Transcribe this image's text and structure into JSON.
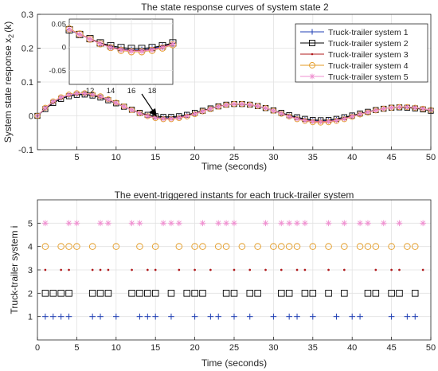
{
  "chart_data": [
    {
      "type": "line",
      "title": "The state response curves of system state 2",
      "xlabel": "Time (seconds)",
      "ylabel_main": "System state response x",
      "ylabel_sub": "2",
      "ylabel_tail": "(k)",
      "xlim": [
        0,
        50
      ],
      "ylim": [
        -0.1,
        0.3
      ],
      "xticks": [
        "5",
        "10",
        "15",
        "20",
        "25",
        "30",
        "35",
        "40",
        "45",
        "50"
      ],
      "yticks": [
        "-0.1",
        "0",
        "0.1",
        "0.2",
        "0.3"
      ],
      "grid": true,
      "legend_position": "top-right",
      "series": [
        {
          "name": "Truck-trailer system 1",
          "color": "#1f3fb4",
          "marker": "plus"
        },
        {
          "name": "Truck-trailer system 2",
          "color": "#000000",
          "marker": "square"
        },
        {
          "name": "Truck-trailer system 3",
          "color": "#b0181b",
          "marker": "dot"
        },
        {
          "name": "Truck-trailer system 4",
          "color": "#e39a22",
          "marker": "circle"
        },
        {
          "name": "Truck-trailer system 5",
          "color": "#ef8fd0",
          "marker": "star"
        }
      ],
      "x": [
        0,
        1,
        2,
        3,
        4,
        5,
        6,
        7,
        8,
        9,
        10,
        11,
        12,
        13,
        14,
        15,
        16,
        17,
        18,
        19,
        20,
        21,
        22,
        23,
        24,
        25,
        26,
        27,
        28,
        29,
        30,
        31,
        32,
        33,
        34,
        35,
        36,
        37,
        38,
        39,
        40,
        41,
        42,
        43,
        44,
        45,
        46,
        47,
        48,
        49,
        50
      ],
      "series_values": {
        "s1": [
          0,
          0.022,
          0.04,
          0.052,
          0.06,
          0.064,
          0.064,
          0.061,
          0.055,
          0.047,
          0.037,
          0.027,
          0.017,
          0.008,
          0.001,
          -0.004,
          -0.006,
          -0.006,
          -0.003,
          0.002,
          0.008,
          0.015,
          0.022,
          0.028,
          0.032,
          0.034,
          0.034,
          0.032,
          0.028,
          0.022,
          0.015,
          0.007,
          0,
          -0.006,
          -0.011,
          -0.014,
          -0.015,
          -0.014,
          -0.011,
          -0.006,
          0,
          0.006,
          0.012,
          0.017,
          0.021,
          0.024,
          0.025,
          0.025,
          0.023,
          0.02,
          0.016
        ],
        "s2": [
          0,
          0.02,
          0.038,
          0.05,
          0.058,
          0.062,
          0.063,
          0.06,
          0.054,
          0.046,
          0.037,
          0.027,
          0.018,
          0.009,
          0.003,
          -0.001,
          -0.003,
          -0.003,
          -0.001,
          0.003,
          0.009,
          0.015,
          0.022,
          0.028,
          0.033,
          0.035,
          0.035,
          0.033,
          0.029,
          0.023,
          0.016,
          0.009,
          0.002,
          -0.004,
          -0.009,
          -0.012,
          -0.013,
          -0.012,
          -0.009,
          -0.004,
          0.001,
          0.007,
          0.012,
          0.017,
          0.021,
          0.024,
          0.025,
          0.024,
          0.022,
          0.019,
          0.015
        ],
        "s3": [
          0,
          0.023,
          0.042,
          0.054,
          0.062,
          0.066,
          0.066,
          0.063,
          0.057,
          0.049,
          0.039,
          0.028,
          0.018,
          0.008,
          0,
          -0.005,
          -0.008,
          -0.008,
          -0.005,
          0,
          0.007,
          0.014,
          0.021,
          0.028,
          0.032,
          0.035,
          0.035,
          0.033,
          0.029,
          0.023,
          0.015,
          0.007,
          -0.001,
          -0.008,
          -0.013,
          -0.016,
          -0.017,
          -0.016,
          -0.013,
          -0.008,
          -0.001,
          0.005,
          0.011,
          0.017,
          0.021,
          0.024,
          0.026,
          0.026,
          0.024,
          0.021,
          0.017
        ],
        "s4": [
          0,
          0.024,
          0.043,
          0.055,
          0.063,
          0.067,
          0.067,
          0.064,
          0.058,
          0.049,
          0.039,
          0.028,
          0.017,
          0.007,
          -0.001,
          -0.007,
          -0.01,
          -0.01,
          -0.007,
          -0.002,
          0.005,
          0.013,
          0.02,
          0.027,
          0.032,
          0.035,
          0.035,
          0.033,
          0.029,
          0.023,
          0.015,
          0.006,
          -0.002,
          -0.01,
          -0.015,
          -0.019,
          -0.02,
          -0.019,
          -0.015,
          -0.01,
          -0.003,
          0.004,
          0.01,
          0.016,
          0.021,
          0.024,
          0.026,
          0.026,
          0.024,
          0.021,
          0.017
        ],
        "s5": [
          0,
          0.023,
          0.042,
          0.054,
          0.062,
          0.066,
          0.066,
          0.063,
          0.057,
          0.048,
          0.038,
          0.027,
          0.017,
          0.007,
          -0.001,
          -0.006,
          -0.009,
          -0.009,
          -0.006,
          -0.001,
          0.006,
          0.013,
          0.021,
          0.027,
          0.032,
          0.035,
          0.035,
          0.033,
          0.029,
          0.023,
          0.015,
          0.007,
          -0.002,
          -0.009,
          -0.014,
          -0.017,
          -0.018,
          -0.017,
          -0.014,
          -0.009,
          -0.002,
          0.005,
          0.011,
          0.016,
          0.021,
          0.024,
          0.026,
          0.026,
          0.024,
          0.021,
          0.017
        ]
      },
      "inset": {
        "xlim": [
          10,
          20
        ],
        "ylim": [
          -0.08,
          0.06
        ],
        "xticks": [
          "12",
          "14",
          "16",
          "18"
        ],
        "yticks": [
          "0.05",
          "0",
          "-0.05"
        ]
      }
    },
    {
      "type": "scatter",
      "title": "The event-triggered instants for each truck-trailer system",
      "xlabel": "Time (seconds)",
      "ylabel": "Truck-trailer system i",
      "xlim": [
        0,
        50
      ],
      "ylim": [
        0,
        6
      ],
      "xticks": [
        "0",
        "5",
        "10",
        "15",
        "20",
        "25",
        "30",
        "35",
        "40",
        "45",
        "50"
      ],
      "yticks": [
        "1",
        "2",
        "3",
        "4",
        "5"
      ],
      "grid": true,
      "events": [
        {
          "system": 1,
          "marker": "plus",
          "color": "#1f3fb4",
          "times": [
            1,
            2,
            3,
            4,
            7,
            8,
            10,
            13,
            14,
            15,
            17,
            20,
            22,
            23,
            25,
            27,
            30,
            32,
            33,
            35,
            38,
            40,
            41,
            45,
            47,
            48
          ]
        },
        {
          "system": 2,
          "marker": "square",
          "color": "#000000",
          "times": [
            1,
            2,
            3,
            4,
            7,
            8,
            9,
            12,
            13,
            14,
            15,
            17,
            19,
            20,
            21,
            24,
            25,
            27,
            28,
            31,
            32,
            34,
            35,
            37,
            39,
            42,
            43,
            45,
            46,
            48
          ]
        },
        {
          "system": 3,
          "marker": "dot",
          "color": "#b0181b",
          "times": [
            1,
            3,
            4,
            7,
            8,
            9,
            12,
            14,
            15,
            18,
            20,
            22,
            25,
            27,
            29,
            31,
            33,
            34,
            37,
            39,
            43,
            45,
            46,
            49
          ]
        },
        {
          "system": 4,
          "marker": "circle",
          "color": "#e39a22",
          "times": [
            1,
            3,
            4,
            5,
            7,
            10,
            13,
            15,
            18,
            20,
            21,
            23,
            24,
            26,
            28,
            30,
            31,
            32,
            33,
            35,
            37,
            39,
            41,
            42,
            43,
            45,
            47,
            48
          ]
        },
        {
          "system": 5,
          "marker": "star",
          "color": "#ef8fd0",
          "times": [
            1,
            4,
            5,
            8,
            9,
            12,
            13,
            16,
            17,
            18,
            21,
            23,
            24,
            25,
            29,
            31,
            32,
            33,
            34,
            37,
            39,
            41,
            42,
            44,
            46,
            49
          ]
        }
      ]
    }
  ]
}
